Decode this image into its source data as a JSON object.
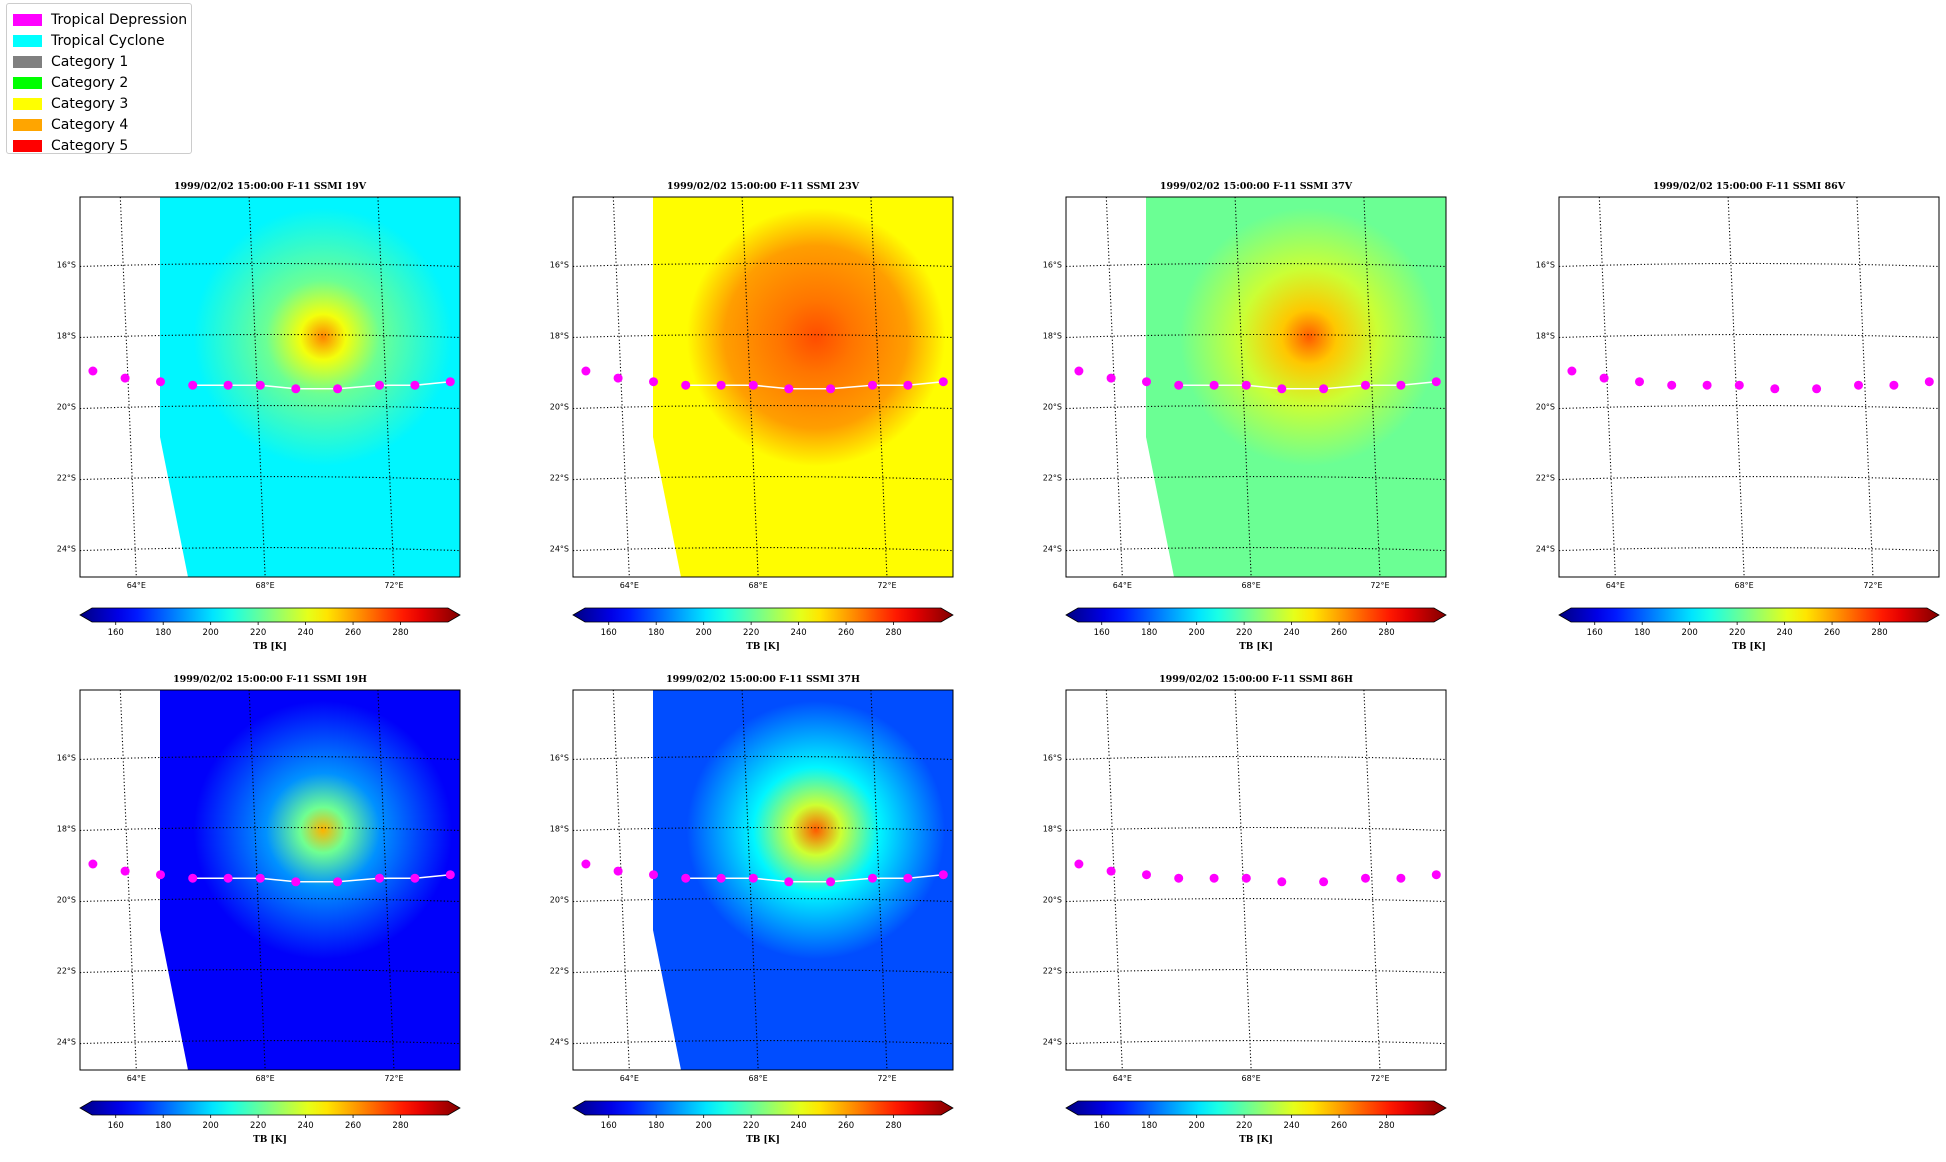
{
  "legend": {
    "items": [
      {
        "label": "Tropical Depression",
        "color": "#ff00ff"
      },
      {
        "label": "Tropical Cyclone",
        "color": "#00ffff"
      },
      {
        "label": "Category 1",
        "color": "#808080"
      },
      {
        "label": "Category 2",
        "color": "#00ff00"
      },
      {
        "label": "Category 3",
        "color": "#ffff00"
      },
      {
        "label": "Category 4",
        "color": "#ffa500"
      },
      {
        "label": "Category 5",
        "color": "#ff0000"
      }
    ]
  },
  "chart_data": {
    "type": "heatmap",
    "colormap": "jet",
    "panels": [
      {
        "title": "1999/02/02 15:00:00  F-11 SSMI 19V",
        "has_swath": true,
        "field": {
          "background": 205,
          "near": 222,
          "core": 262,
          "core_size": 1.0
        }
      },
      {
        "title": "1999/02/02 15:00:00  F-11 SSMI 23V",
        "has_swath": true,
        "field": {
          "background": 244,
          "near": 258,
          "core": 270,
          "core_size": 1.6
        }
      },
      {
        "title": "1999/02/02 15:00:00  F-11 SSMI 37V",
        "has_swath": true,
        "field": {
          "background": 222,
          "near": 236,
          "core": 268,
          "core_size": 1.2
        }
      },
      {
        "title": "1999/02/02 15:00:00  F-11 SSMI 86V",
        "has_swath": false
      },
      {
        "title": "1999/02/02 15:00:00  F-11 SSMI 19H",
        "has_swath": true,
        "field": {
          "background": 168,
          "near": 190,
          "core": 255,
          "core_size": 1.0
        }
      },
      {
        "title": "1999/02/02 15:00:00  F-11 SSMI 37H",
        "has_swath": true,
        "field": {
          "background": 180,
          "near": 205,
          "core": 268,
          "core_size": 1.1
        }
      },
      {
        "title": "1999/02/02 15:00:00  F-11 SSMI 86H",
        "has_swath": false
      }
    ],
    "x_ticks": [
      "64°E",
      "68°E",
      "72°E"
    ],
    "y_ticks": [
      "16°S",
      "18°S",
      "20°S",
      "22°S",
      "24°S"
    ],
    "xlim": [
      62.5,
      74.3
    ],
    "ylim": [
      -24.8,
      -14.1
    ],
    "grid": true,
    "colorbar": {
      "label": "TB [K]",
      "ticks": [
        160,
        180,
        200,
        220,
        240,
        260,
        280
      ],
      "range": [
        150,
        300
      ]
    },
    "track": [
      {
        "lon": 62.9,
        "lat": -19.0
      },
      {
        "lon": 63.9,
        "lat": -19.2
      },
      {
        "lon": 65.0,
        "lat": -19.3
      },
      {
        "lon": 66.0,
        "lat": -19.4
      },
      {
        "lon": 67.1,
        "lat": -19.4
      },
      {
        "lon": 68.1,
        "lat": -19.4
      },
      {
        "lon": 69.2,
        "lat": -19.5
      },
      {
        "lon": 70.5,
        "lat": -19.5
      },
      {
        "lon": 71.8,
        "lat": -19.4
      },
      {
        "lon": 72.9,
        "lat": -19.4
      },
      {
        "lon": 74.0,
        "lat": -19.3
      }
    ],
    "track_line_start_index": 3,
    "track_marker_color": "#ff00ff",
    "track_line_color": "#ffffff"
  }
}
